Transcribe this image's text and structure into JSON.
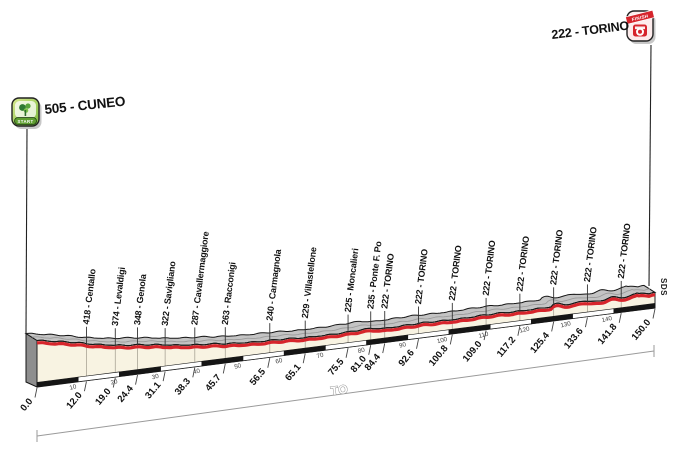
{
  "header": {
    "start_label": "505 - CUNEO",
    "finish_label": "222 - TORINO",
    "start_badge": "START",
    "finish_badge": "FINISH"
  },
  "footer": {
    "province_label": "TO",
    "credit": "SDS"
  },
  "chart_data": {
    "type": "area",
    "x_axis": {
      "unit": "km",
      "range": [
        0,
        150
      ]
    },
    "y_axis": {
      "unit": "m"
    },
    "start": {
      "km": 0.0,
      "elevation_m": 505,
      "name": "CUNEO",
      "label": "505 - CUNEO",
      "km_label": "0.0"
    },
    "finish": {
      "km": 150.0,
      "elevation_m": 222,
      "name": "TORINO",
      "label": "222 - TORINO",
      "km_label": "150.0"
    },
    "waypoints": [
      {
        "km": 12.0,
        "elevation_m": 418,
        "name": "Centallo",
        "label": "418 - Centallo",
        "km_label": "12.0"
      },
      {
        "km": 19.0,
        "elevation_m": 374,
        "name": "Levaldigi",
        "label": "374 - Levaldigi",
        "km_label": "19.0"
      },
      {
        "km": 24.4,
        "elevation_m": 348,
        "name": "Genola",
        "label": "348 - Genola",
        "km_label": "24.4"
      },
      {
        "km": 31.1,
        "elevation_m": 322,
        "name": "Savigliano",
        "label": "322 - Savigliano",
        "km_label": "31.1"
      },
      {
        "km": 38.3,
        "elevation_m": 287,
        "name": "Cavallermaggiore",
        "label": "287 - Cavallermaggiore",
        "km_label": "38.3"
      },
      {
        "km": 45.7,
        "elevation_m": 263,
        "name": "Racconigi",
        "label": "263 - Racconigi",
        "km_label": "45.7"
      },
      {
        "km": 56.5,
        "elevation_m": 240,
        "name": "Carmagnola",
        "label": "240 - Carmagnola",
        "km_label": "56.5"
      },
      {
        "km": 65.1,
        "elevation_m": 229,
        "name": "Villastellone",
        "label": "229 - Villastellone",
        "km_label": "65.1"
      },
      {
        "km": 75.5,
        "elevation_m": 225,
        "name": "Moncalieri",
        "label": "225 - Moncalieri",
        "km_label": "75.5"
      },
      {
        "km": 81.0,
        "elevation_m": 235,
        "name": "Ponte F. Po",
        "label": "235 - Ponte F. Po",
        "km_label": "81.0"
      },
      {
        "km": 84.4,
        "elevation_m": 222,
        "name": "TORINO",
        "label": "222 - TORINO",
        "km_label": "84.4"
      },
      {
        "km": 92.6,
        "elevation_m": 222,
        "name": "TORINO",
        "label": "222 - TORINO",
        "km_label": "92.6"
      },
      {
        "km": 100.8,
        "elevation_m": 222,
        "name": "TORINO",
        "label": "222 - TORINO",
        "km_label": "100.8"
      },
      {
        "km": 109.0,
        "elevation_m": 222,
        "name": "TORINO",
        "label": "222 - TORINO",
        "km_label": "109.0"
      },
      {
        "km": 117.2,
        "elevation_m": 222,
        "name": "TORINO",
        "label": "222 - TORINO",
        "km_label": "117.2"
      },
      {
        "km": 125.4,
        "elevation_m": 222,
        "name": "TORINO",
        "label": "222 - TORINO",
        "km_label": "125.4"
      },
      {
        "km": 133.6,
        "elevation_m": 222,
        "name": "TORINO",
        "label": "222 - TORINO",
        "km_label": "133.6"
      },
      {
        "km": 141.8,
        "elevation_m": 222,
        "name": "TORINO",
        "label": "222 - TORINO",
        "km_label": "141.8"
      }
    ],
    "ruler_labels": [
      "10",
      "20",
      "30",
      "40",
      "50",
      "60",
      "70",
      "80",
      "90",
      "100",
      "110",
      "120",
      "130",
      "140"
    ],
    "colors": {
      "profile_red": "#d6252c",
      "face_cream": "#f8f3e2",
      "top_gray": "#c4c4c4",
      "side_gray": "#8e8e8e",
      "outline": "#161616",
      "ruler_black": "#151515",
      "bracket_gray": "#9a9a9a",
      "start_green": "#7ab93c",
      "start_green_light": "#d9ea90",
      "banner_green": "#5f9e31",
      "finish_red": "#d6252c",
      "text_black": "#111111"
    }
  }
}
